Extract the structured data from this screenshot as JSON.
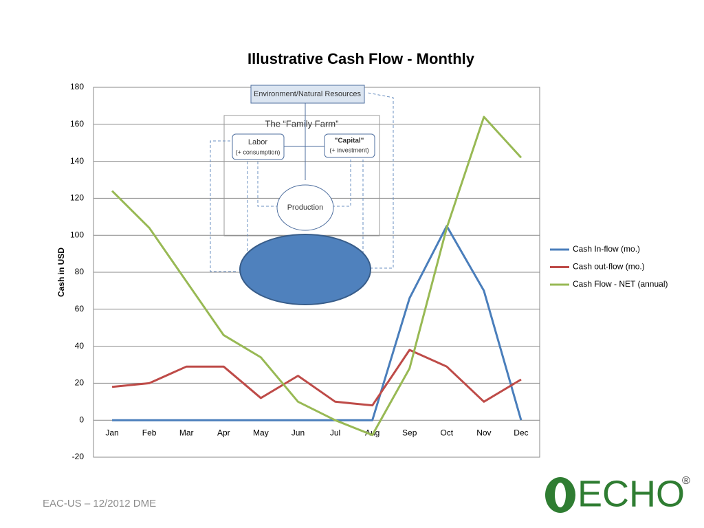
{
  "chart_data": {
    "type": "line",
    "title": "Illustrative Cash Flow - Monthly",
    "y_label": "Cash in USD",
    "categories": [
      "Jan",
      "Feb",
      "Mar",
      "Apr",
      "May",
      "Jun",
      "Jul",
      "Aug",
      "Sep",
      "Oct",
      "Nov",
      "Dec"
    ],
    "series": [
      {
        "name": "Cash In-flow (mo.)",
        "color": "#4a7ebb",
        "values": [
          0,
          0,
          0,
          0,
          0,
          0,
          0,
          0,
          66,
          105,
          70,
          0
        ]
      },
      {
        "name": "Cash out-flow (mo.)",
        "color": "#be4b48",
        "values": [
          18,
          20,
          29,
          29,
          12,
          24,
          10,
          8,
          38,
          29,
          10,
          22
        ]
      },
      {
        "name": "Cash Flow - NET (annual)",
        "color": "#98b954",
        "values": [
          124,
          104,
          75,
          46,
          34,
          10,
          0,
          -8,
          28,
          104,
          164,
          142
        ]
      }
    ],
    "ylim": [
      -20,
      180
    ],
    "yticks": [
      -20,
      0,
      20,
      40,
      60,
      80,
      100,
      120,
      140,
      160,
      180
    ],
    "grid": true,
    "legend": "right"
  },
  "diagram": {
    "top": "Environment/Natural Resources",
    "farm": "The “Family Farm”",
    "labor": "Labor",
    "labor_note": "(+ consumption)",
    "capital": "\"Capital\"",
    "capital_note": "(+ investment)",
    "production": "Production"
  },
  "footer": "EAC-US – 12/2012 DME",
  "logo": {
    "text": "ECHO",
    "mark": "®"
  }
}
